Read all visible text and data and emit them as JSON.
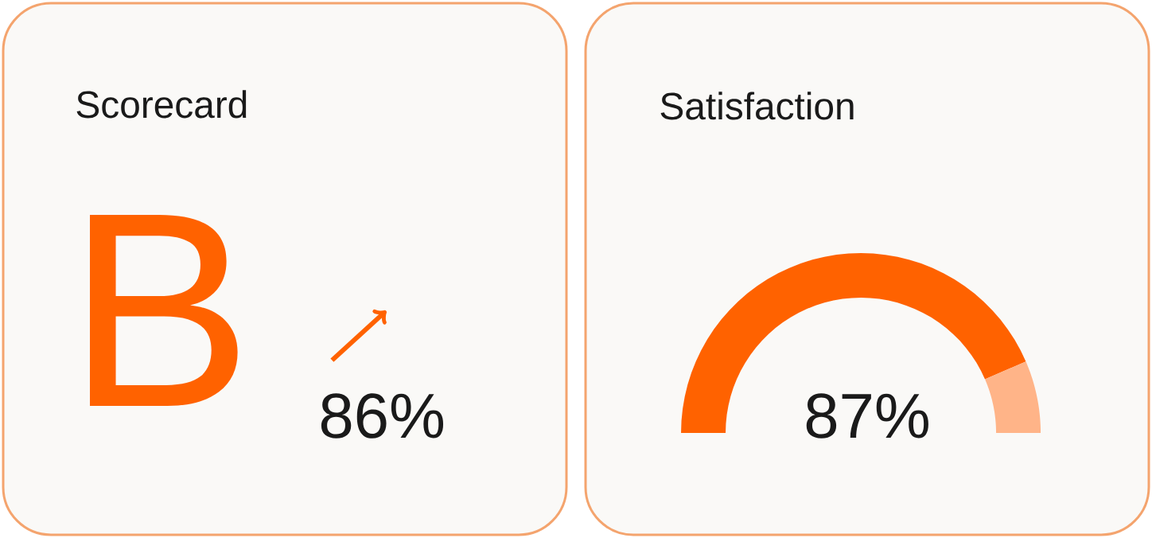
{
  "chart_data": [
    {
      "type": "other",
      "title": "Scorecard",
      "annotations": [
        "B",
        "86%"
      ]
    },
    {
      "type": "donut",
      "title": "Satisfaction",
      "categories": [
        null,
        null
      ],
      "values": [
        87,
        13
      ],
      "colors": [
        "#ff6200",
        "#ffb488"
      ],
      "value_labels": [
        "87%",
        null
      ]
    }
  ]
}
